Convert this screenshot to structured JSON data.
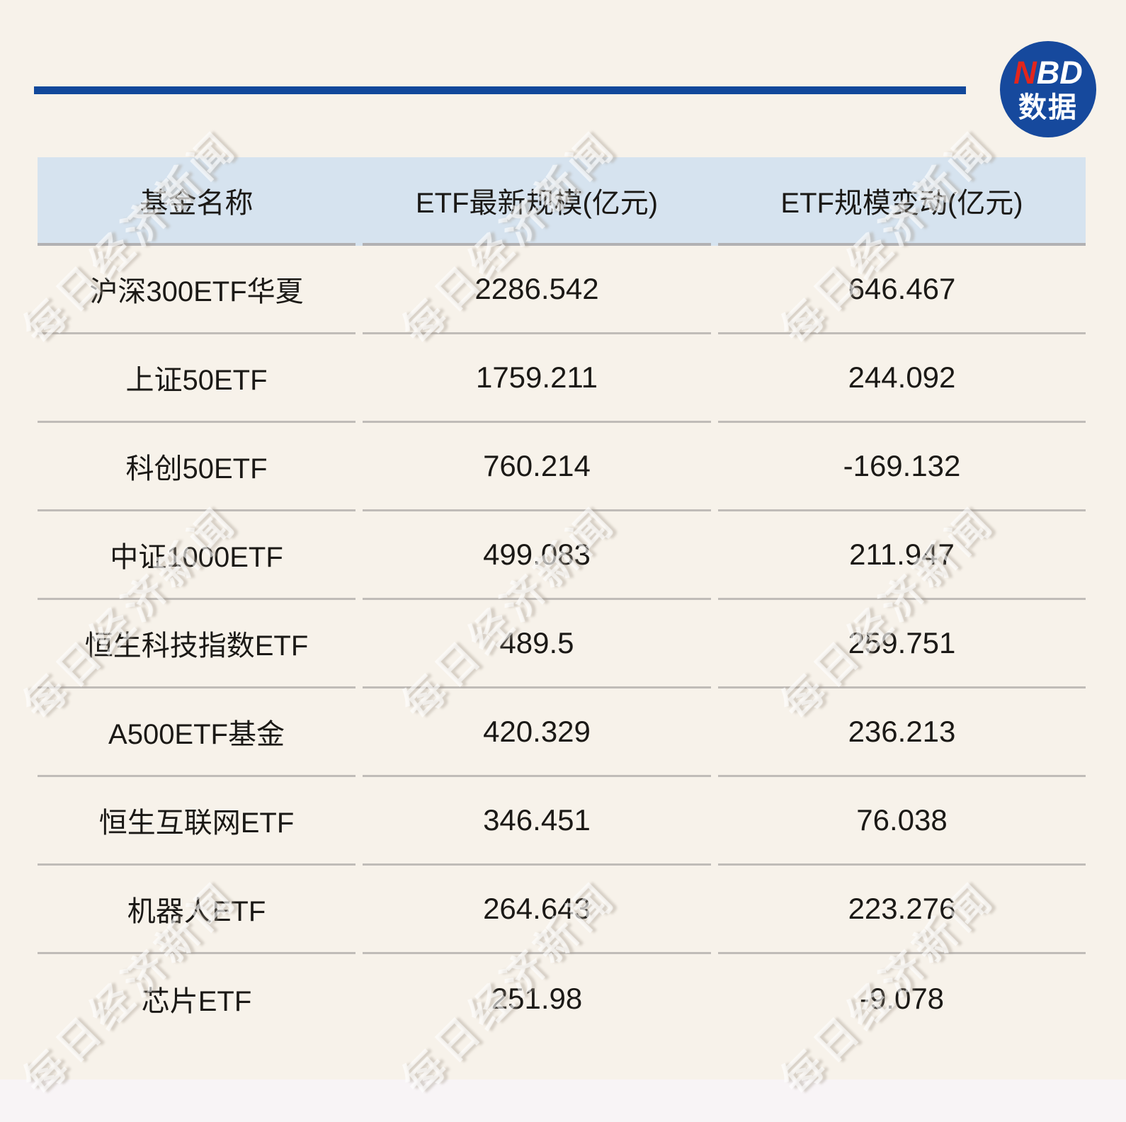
{
  "brand": {
    "rule_color": "#11489b",
    "logo": {
      "red_text": "N",
      "white_text": "BD",
      "caption": "数据",
      "circle_color": "#16499d",
      "accent_red": "#e2261d"
    }
  },
  "watermark": {
    "text": "每日经济新闻"
  },
  "colors": {
    "background": "#f7f2ea",
    "bottom_strip": "#f8f4f6",
    "header_band": "#d6e3ef",
    "row_divider": "#c0bcb8",
    "header_divider": "#b2b1b3",
    "text": "#1b1916"
  },
  "chart_data": {
    "type": "table",
    "columns": [
      "基金名称",
      "ETF最新规模(亿元)",
      "ETF规模变动(亿元)"
    ],
    "rows": [
      [
        "沪深300ETF华夏",
        2286.542,
        646.467
      ],
      [
        "上证50ETF",
        1759.211,
        244.092
      ],
      [
        "科创50ETF",
        760.214,
        -169.132
      ],
      [
        "中证1000ETF",
        499.083,
        211.947
      ],
      [
        "恒生科技指数ETF",
        489.5,
        259.751
      ],
      [
        "A500ETF基金",
        420.329,
        236.213
      ],
      [
        "恒生互联网ETF",
        346.451,
        76.038
      ],
      [
        "机器人ETF",
        264.643,
        223.276
      ],
      [
        "芯片ETF",
        251.98,
        -9.078
      ]
    ]
  }
}
